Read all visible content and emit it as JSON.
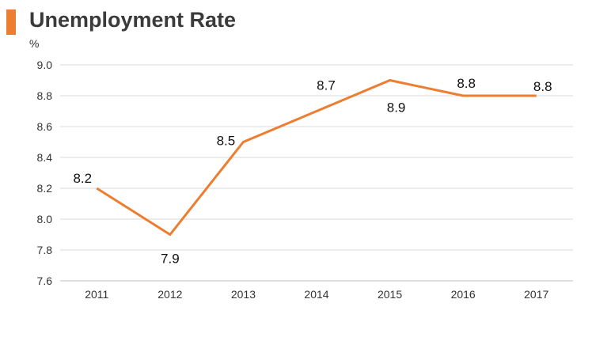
{
  "chart_data": {
    "type": "line",
    "title": "Unemployment Rate",
    "ylabel": "%",
    "xlabel": "",
    "categories": [
      "2011",
      "2012",
      "2013",
      "2014",
      "2015",
      "2016",
      "2017"
    ],
    "series": [
      {
        "values": [
          8.2,
          7.9,
          8.5,
          8.7,
          8.9,
          8.8,
          8.8
        ]
      }
    ],
    "data_labels": [
      "8.2",
      "7.9",
      "8.5",
      "8.7",
      "8.9",
      "8.8",
      "8.8"
    ],
    "y_ticks": [
      "9.0",
      "8.8",
      "8.6",
      "8.4",
      "8.2",
      "8.0",
      "7.8",
      "7.6"
    ],
    "ylim": [
      7.6,
      9.0
    ],
    "grid": true,
    "legend": "none",
    "colors": {
      "line": "#ED7D31",
      "accent": "#ED7D31",
      "grid": "#D9D9D9",
      "axis": "#BFBFBF"
    }
  }
}
